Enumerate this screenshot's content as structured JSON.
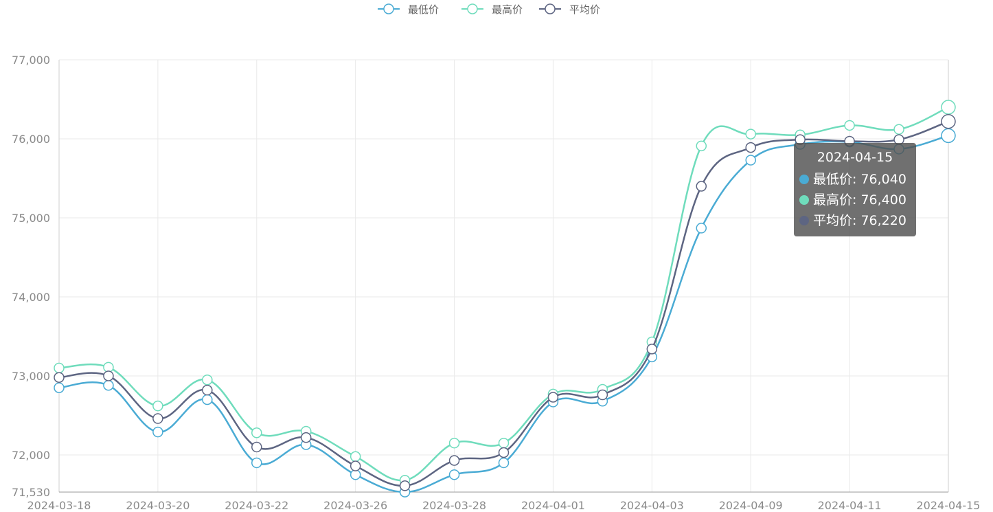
{
  "chart_data": {
    "type": "line",
    "categories": [
      "2024-03-18",
      "2024-03-19",
      "2024-03-20",
      "2024-03-21",
      "2024-03-22",
      "2024-03-25",
      "2024-03-26",
      "2024-03-27",
      "2024-03-28",
      "2024-03-29",
      "2024-04-01",
      "2024-04-02",
      "2024-04-03",
      "2024-04-08",
      "2024-04-09",
      "2024-04-10",
      "2024-04-11",
      "2024-04-12",
      "2024-04-15"
    ],
    "xtick_labels": [
      "2024-03-18",
      "2024-03-20",
      "2024-03-22",
      "2024-03-26",
      "2024-03-28",
      "2024-04-01",
      "2024-04-03",
      "2024-04-09",
      "2024-04-11",
      "2024-04-15"
    ],
    "yticks": [
      71530,
      72000,
      73000,
      74000,
      75000,
      76000,
      77000
    ],
    "ytick_labels": [
      "71,530",
      "72,000",
      "73,000",
      "74,000",
      "75,000",
      "76,000",
      "77,000"
    ],
    "ylim": [
      71530,
      77000
    ],
    "smooth": true,
    "grid": true,
    "legend_position": "top-center",
    "series": [
      {
        "name": "最低价",
        "color": "#4aabd4",
        "values": [
          72850,
          72880,
          72290,
          72700,
          71900,
          72130,
          71750,
          71530,
          71750,
          71900,
          72670,
          72680,
          73240,
          74870,
          75730,
          75930,
          75960,
          75870,
          76040
        ]
      },
      {
        "name": "最高价",
        "color": "#6fdcbc",
        "values": [
          73100,
          73110,
          72620,
          72950,
          72280,
          72300,
          71980,
          71680,
          72150,
          72150,
          72770,
          72830,
          73430,
          75910,
          76060,
          76050,
          76170,
          76120,
          76400
        ]
      },
      {
        "name": "平均价",
        "color": "#5d6582",
        "values": [
          72980,
          73000,
          72460,
          72820,
          72100,
          72220,
          71860,
          71610,
          71930,
          72030,
          72730,
          72760,
          73340,
          75400,
          75890,
          75990,
          75970,
          75990,
          76220
        ]
      }
    ],
    "tooltip": {
      "title": "2024-04-15",
      "rows": [
        {
          "label": "最低价: 76,040",
          "color": "#4aabd4"
        },
        {
          "label": "最高价: 76,400",
          "color": "#6fdcbc"
        },
        {
          "label": "平均价: 76,220",
          "color": "#5d6582"
        }
      ]
    }
  }
}
